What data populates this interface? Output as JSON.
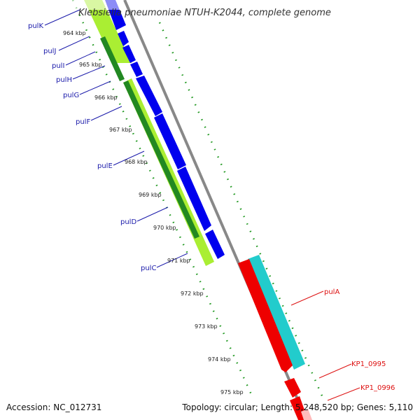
{
  "title": "Klebsiella pneumoniae NTUH-K2044, complete genome",
  "footer": {
    "accession": "Accession: NC_012731",
    "stats": "Topology: circular; Length: 5,248,520 bp; Genes: 5,110"
  },
  "colors": {
    "backbone": "#888888",
    "forward_cds": "#0000ee",
    "reverse_cds": "#ee0000",
    "forward_gene": "#aaee33",
    "forward_gene_dark": "#228822",
    "reverse_gene": "#22cccc",
    "tick": "#229922",
    "label_forward": "#1a1aaa",
    "label_reverse": "#dd1111"
  },
  "ticks": [
    {
      "label": "964 kbp"
    },
    {
      "label": "965 kbp"
    },
    {
      "label": "966 kbp"
    },
    {
      "label": "967 kbp"
    },
    {
      "label": "968 kbp"
    },
    {
      "label": "969 kbp"
    },
    {
      "label": "970 kbp"
    },
    {
      "label": "971 kbp"
    },
    {
      "label": "972 kbp"
    },
    {
      "label": "973 kbp"
    },
    {
      "label": "974 kbp"
    },
    {
      "label": "975 kbp"
    }
  ],
  "genes_left": [
    "pulK",
    "pulJ",
    "pulI",
    "pulH",
    "pulG",
    "pulF",
    "pulE",
    "pulD",
    "pulC"
  ],
  "genes_right": [
    "pulA",
    "KP1_0995",
    "KP1_0996"
  ]
}
